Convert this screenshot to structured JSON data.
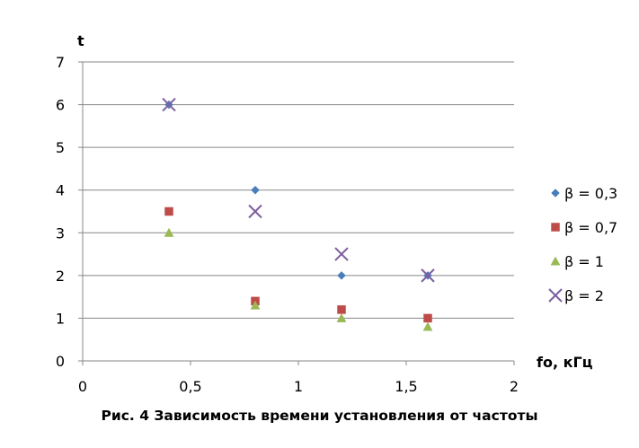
{
  "chart_data": {
    "type": "scatter",
    "title": "",
    "caption": "Рис. 4 Зависимость времени установления от частоты",
    "xlabel": "fo, кГц",
    "ylabel": "t",
    "xlim": [
      0,
      2
    ],
    "ylim": [
      0,
      7
    ],
    "x_ticks": [
      "0",
      "0,5",
      "1",
      "1,5",
      "2"
    ],
    "y_ticks": [
      "0",
      "1",
      "2",
      "3",
      "4",
      "5",
      "6",
      "7"
    ],
    "grid": "horizontal",
    "legend_position": "right",
    "series": [
      {
        "name": "β = 0,3",
        "marker": "diamond",
        "color": "#4a7ebb",
        "points": [
          [
            0.4,
            6.0
          ],
          [
            0.8,
            4.0
          ],
          [
            1.2,
            2.0
          ],
          [
            1.6,
            2.0
          ]
        ]
      },
      {
        "name": "β = 0,7",
        "marker": "square",
        "color": "#be4b48",
        "points": [
          [
            0.4,
            3.5
          ],
          [
            0.8,
            1.4
          ],
          [
            1.2,
            1.2
          ],
          [
            1.6,
            1.0
          ]
        ]
      },
      {
        "name": "β = 1",
        "marker": "triangle",
        "color": "#98b954",
        "points": [
          [
            0.4,
            3.0
          ],
          [
            0.8,
            1.3
          ],
          [
            1.2,
            1.0
          ],
          [
            1.6,
            0.8
          ]
        ]
      },
      {
        "name": "β = 2",
        "marker": "x",
        "color": "#7d5fa0",
        "points": [
          [
            0.4,
            6.0
          ],
          [
            0.8,
            3.5
          ],
          [
            1.2,
            2.5
          ],
          [
            1.6,
            2.0
          ]
        ]
      }
    ]
  }
}
